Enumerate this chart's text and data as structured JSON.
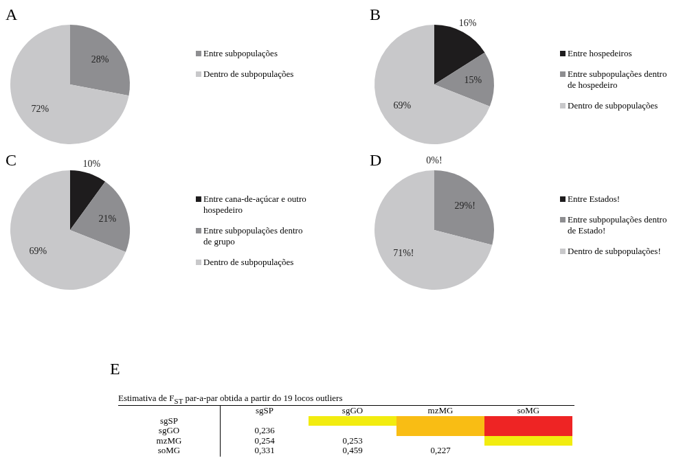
{
  "chart_data": [
    {
      "type": "pie",
      "title": "A",
      "categories": [
        "Entre subpopulações",
        "Dentro de subpopulações"
      ],
      "values": [
        28,
        72
      ],
      "colors": [
        "#8e8e91",
        "#c8c8ca"
      ],
      "value_labels": [
        "28%",
        "72%"
      ],
      "legend": "right"
    },
    {
      "type": "pie",
      "title": "B",
      "categories": [
        "Entre hospedeiros",
        "Entre subpopulações dentro de hospedeiro",
        "Dentro de subpopulações"
      ],
      "values": [
        16,
        15,
        69
      ],
      "colors": [
        "#1e1c1d",
        "#8e8e91",
        "#c8c8ca"
      ],
      "value_labels": [
        "16%",
        "15%",
        "69%"
      ],
      "legend": "right"
    },
    {
      "type": "pie",
      "title": "C",
      "categories": [
        "Entre cana-de-açúcar e outro hospedeiro",
        "Entre subpopulações dentro de grupo",
        "Dentro de subpopulações"
      ],
      "values": [
        10,
        21,
        69
      ],
      "colors": [
        "#1e1c1d",
        "#8e8e91",
        "#c8c8ca"
      ],
      "value_labels": [
        "10%",
        "21%",
        "69%"
      ],
      "legend": "right"
    },
    {
      "type": "pie",
      "title": "D",
      "categories": [
        "Entre Estados!",
        "Entre subpopulações dentro de Estado!",
        "Dentro de subpopulações!"
      ],
      "values": [
        0,
        29,
        71
      ],
      "colors": [
        "#1e1c1d",
        "#8e8e91",
        "#c8c8ca"
      ],
      "value_labels": [
        "0%!",
        "29%!",
        "71%!"
      ],
      "legend": "right"
    },
    {
      "type": "heatmap",
      "title": "E",
      "subtitle": "Estimativa de F$_{ST}$ par-a-par obtida a partir do 19 locos outliers",
      "categories": [
        "sgSP",
        "sgGO",
        "mzMG",
        "soMG"
      ],
      "y_categories": [
        "sgSP",
        "sgGO",
        "mzMG",
        "soMG"
      ],
      "cells": [
        [
          null,
          null,
          null,
          null
        ],
        [
          0.236,
          null,
          null,
          null
        ],
        [
          0.254,
          0.253,
          null,
          null
        ],
        [
          0.331,
          0.459,
          0.227,
          null
        ]
      ],
      "cell_labels": [
        [
          null,
          null,
          null,
          null
        ],
        [
          "0,236",
          null,
          null,
          null
        ],
        [
          "0,254",
          "0,253",
          null,
          null
        ],
        [
          "0,331",
          "0,459",
          "0,227",
          null
        ]
      ],
      "colors": [
        [
          null,
          "#f2ec0f",
          "#f9bd14",
          "#ee2424"
        ],
        [
          null,
          null,
          "#f9bd14",
          "#ee2424"
        ],
        [
          null,
          null,
          null,
          "#f2ec0f"
        ],
        [
          null,
          null,
          null,
          null
        ]
      ]
    }
  ]
}
